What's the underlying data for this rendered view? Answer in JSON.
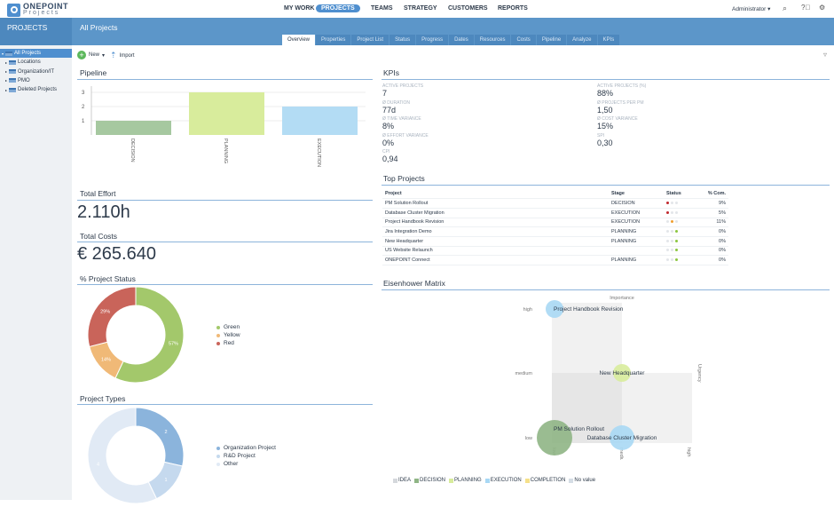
{
  "app": {
    "logo_title": "ONEPOINT",
    "logo_sub": "Projects"
  },
  "nav": [
    "MY WORK",
    "PROJECTS",
    "TEAMS",
    "STRATEGY",
    "CUSTOMERS",
    "REPORTS"
  ],
  "nav_active": "PROJECTS",
  "user": "Administrator",
  "header": {
    "section": "PROJECTS",
    "title": "All Projects"
  },
  "tabs": [
    "Overview",
    "Properties",
    "Project List",
    "Status",
    "Progress",
    "Dates",
    "Resources",
    "Costs",
    "Pipeline",
    "Analyze",
    "KPIs"
  ],
  "tree": [
    "All Projects",
    "Locations",
    "Organization/IT",
    "PMO",
    "Deleted Projects"
  ],
  "toolbar": {
    "new": "New",
    "import": "Import"
  },
  "pipeline": {
    "title": "Pipeline",
    "chart_data": {
      "type": "bar",
      "categories": [
        "DECISION",
        "PLANNING",
        "EXECUTION"
      ],
      "values": [
        1,
        3,
        2
      ],
      "colors": [
        "#a6c8a0",
        "#d8ec9c",
        "#b3dcf4"
      ],
      "yticks": [
        1,
        2,
        3
      ],
      "ylim": [
        0,
        3
      ]
    }
  },
  "effort": {
    "title": "Total Effort",
    "value": "2.110h"
  },
  "costs": {
    "title": "Total Costs",
    "value": "€ 265.640"
  },
  "status": {
    "title": "% Project Status",
    "chart_data": {
      "type": "pie",
      "labels": [
        "Green",
        "Yellow",
        "Red"
      ],
      "values": [
        57,
        14,
        29
      ],
      "value_labels": [
        "57%",
        "14%",
        "29%"
      ],
      "colors": [
        "#a3c86b",
        "#f0b977",
        "#c9645a"
      ]
    }
  },
  "types": {
    "title": "Project Types",
    "chart_data": {
      "type": "pie",
      "labels": [
        "Organization Project",
        "R&D Project",
        "Other"
      ],
      "values": [
        2,
        1,
        4
      ],
      "value_labels": [
        "2",
        "1",
        "4"
      ],
      "colors": [
        "#8bb4dc",
        "#c5d9ee",
        "#e1eaf5"
      ]
    }
  },
  "kpis": {
    "title": "KPIs",
    "items": [
      {
        "label": "ACTIVE PROJECTS",
        "value": "7"
      },
      {
        "label": "ACTIVE PROJECTS (%)",
        "value": "88%"
      },
      {
        "label": "Ø DURATION",
        "value": "77d"
      },
      {
        "label": "Ø PROJECTS PER PM",
        "value": "1,50"
      },
      {
        "label": "Ø TIME VARIANCE",
        "value": "8%"
      },
      {
        "label": "Ø COST VARIANCE",
        "value": "15%"
      },
      {
        "label": "Ø EFFORT VARIANCE",
        "value": "0%"
      },
      {
        "label": "SPI",
        "value": "0,30"
      },
      {
        "label": "CPI",
        "value": "0,94"
      }
    ]
  },
  "top": {
    "title": "Top Projects",
    "columns": [
      "Project",
      "Stage",
      "Status",
      "% Com."
    ],
    "rows": [
      {
        "project": "PM Solution Rollout",
        "stage": "DECISION",
        "status": "red",
        "pct": "9%"
      },
      {
        "project": "Database Cluster Migration",
        "stage": "EXECUTION",
        "status": "red",
        "pct": "5%"
      },
      {
        "project": "Project Handbook Revision",
        "stage": "EXECUTION",
        "status": "yellow",
        "pct": "11%"
      },
      {
        "project": "Jira Integration Demo",
        "stage": "PLANNING",
        "status": "green",
        "pct": "0%"
      },
      {
        "project": "New Headquarter",
        "stage": "PLANNING",
        "status": "green",
        "pct": "0%"
      },
      {
        "project": "US Website Relaunch",
        "stage": "",
        "status": "green",
        "pct": "0%"
      },
      {
        "project": "ONEPOINT Connect",
        "stage": "PLANNING",
        "status": "green",
        "pct": "0%"
      }
    ],
    "status_colors": {
      "red": "#c0282d",
      "yellow": "#f0a030",
      "green": "#8cc63f"
    }
  },
  "eisenhower": {
    "title": "Eisenhower Matrix",
    "chart_data": {
      "type": "scatter",
      "xlabel": "Importance",
      "ylabel": "Urgency",
      "xticks": [
        "low",
        "medium",
        "high"
      ],
      "yticks": [
        "low",
        "medium",
        "high"
      ],
      "points": [
        {
          "label": "Project Handbook Revision",
          "x": "low",
          "y": "high",
          "stage": "EXECUTION",
          "size": 1
        },
        {
          "label": "New Headquarter",
          "x": "medium",
          "y": "medium",
          "stage": "PLANNING",
          "size": 1
        },
        {
          "label": "PM Solution Rollout",
          "x": "low",
          "y": "low",
          "stage": "DECISION",
          "size": 2
        },
        {
          "label": "Database Cluster Migration",
          "x": "medium",
          "y": "low",
          "stage": "EXECUTION",
          "size": 1.4
        }
      ],
      "legend": [
        {
          "name": "IDEA",
          "color": "#d5d8dc"
        },
        {
          "name": "DECISION",
          "color": "#8fb585"
        },
        {
          "name": "PLANNING",
          "color": "#d8ec9c"
        },
        {
          "name": "EXECUTION",
          "color": "#a8d8f4"
        },
        {
          "name": "COMPLETION",
          "color": "#f5e08a"
        },
        {
          "name": "No value",
          "color": "#d5dde5"
        }
      ]
    }
  }
}
